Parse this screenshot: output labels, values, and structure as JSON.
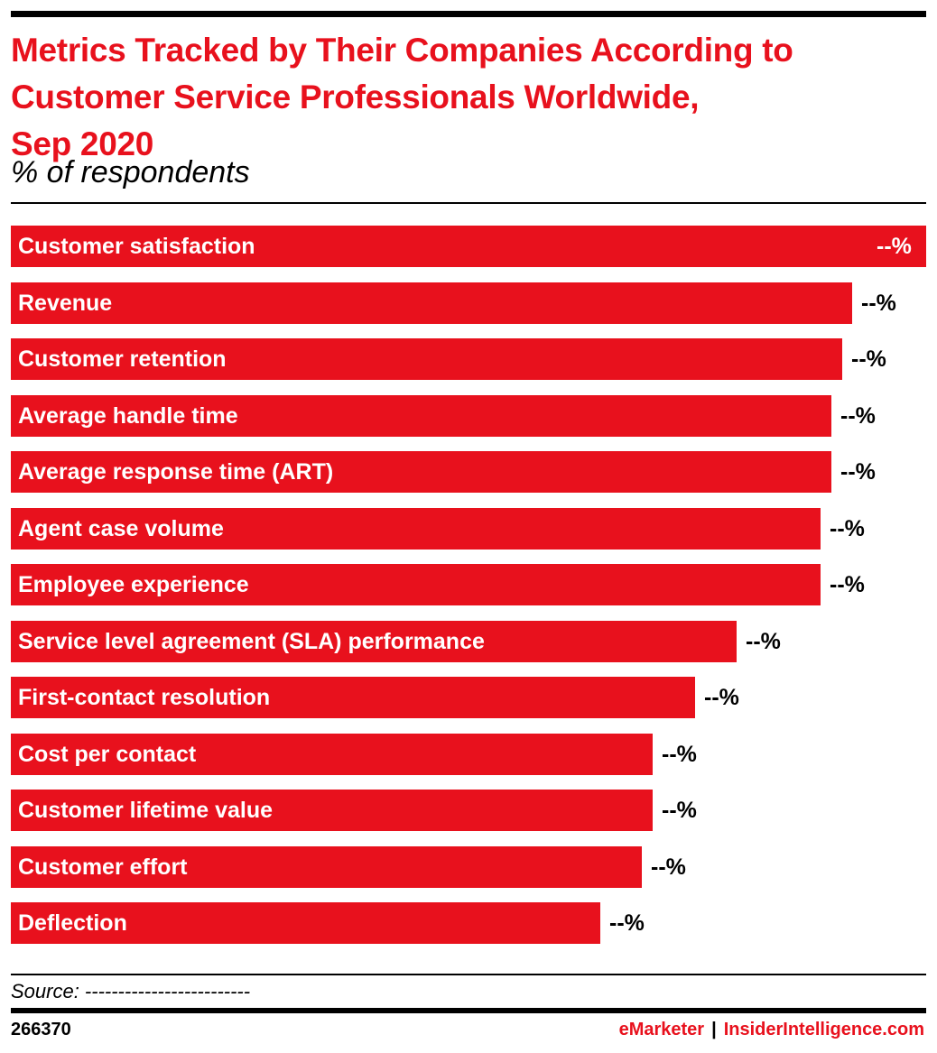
{
  "header": {
    "title_lines": [
      "Metrics Tracked by Their Companies According to",
      "Customer Service Professionals Worldwide,",
      "Sep 2020"
    ],
    "subtitle": "% of respondents"
  },
  "chart_data": {
    "type": "bar",
    "orientation": "horizontal",
    "title": "Metrics Tracked by Their Companies According to Customer Service Professionals Worldwide, Sep 2020",
    "subtitle": "% of respondents",
    "categories": [
      "Customer satisfaction",
      "Revenue",
      "Customer retention",
      "Average handle time",
      "Average response time (ART)",
      "Agent case volume",
      "Employee experience",
      "Service level agreement (SLA) performance",
      "First-contact resolution",
      "Cost per contact",
      "Customer lifetime value",
      "Customer effort",
      "Deflection"
    ],
    "values": [
      87,
      80,
      79,
      78,
      78,
      77,
      77,
      69,
      65,
      61,
      61,
      60,
      56
    ],
    "value_labels": [
      "--%",
      "--%",
      "--%",
      "--%",
      "--%",
      "--%",
      "--%",
      "--%",
      "--%",
      "--%",
      "--%",
      "--%",
      "--%"
    ],
    "bar_color": "#e8111d",
    "grid": false,
    "legend": "none"
  },
  "footer": {
    "source": "Source: -------------------------",
    "chart_id": "266370",
    "brand_emarketer": "eMarketer",
    "brand_separator": "|",
    "brand_insider": "InsiderIntelligence.com"
  }
}
